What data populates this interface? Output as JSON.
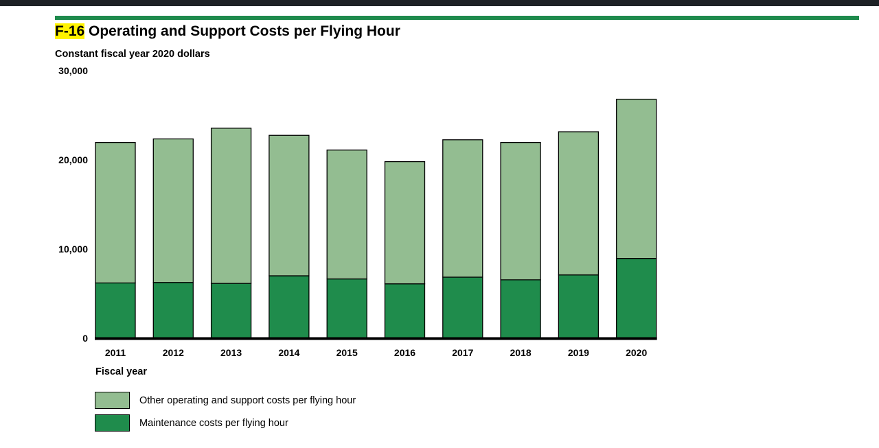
{
  "header": {
    "title_highlight": "F-16",
    "title_rest": " Operating and Support Costs per Flying Hour",
    "subtitle": "Constant fiscal year 2020 dollars"
  },
  "colors": {
    "maintenance": "#1f8c4c",
    "other": "#93bd91",
    "accent": "#1e8a4c",
    "highlight": "#fff200"
  },
  "chart_data": {
    "type": "bar",
    "stacked": true,
    "title": "F-16 Operating and Support Costs per Flying Hour",
    "subtitle": "Constant fiscal year 2020 dollars",
    "xlabel": "Fiscal year",
    "ylabel": "",
    "ylim": [
      0,
      30000
    ],
    "yticks": [
      0,
      10000,
      20000,
      30000
    ],
    "ytick_labels": [
      "0",
      "10,000",
      "20,000",
      "30,000"
    ],
    "grid": false,
    "legend": "bottom",
    "categories": [
      "2011",
      "2012",
      "2013",
      "2014",
      "2015",
      "2016",
      "2017",
      "2018",
      "2019",
      "2020"
    ],
    "series": [
      {
        "name": "Maintenance costs per flying hour",
        "color": "#1f8c4c",
        "values": [
          6200,
          6250,
          6150,
          7000,
          6650,
          6100,
          6850,
          6550,
          7100,
          8950
        ]
      },
      {
        "name": "Other operating and support costs per flying hour",
        "color": "#93bd91",
        "values": [
          15750,
          16100,
          17400,
          15750,
          14450,
          13700,
          15400,
          15400,
          16050,
          17850
        ]
      }
    ]
  },
  "legend_items": [
    {
      "label": "Other operating and support costs per flying hour",
      "color": "#93bd91"
    },
    {
      "label": "Maintenance costs per flying hour",
      "color": "#1f8c4c"
    }
  ]
}
